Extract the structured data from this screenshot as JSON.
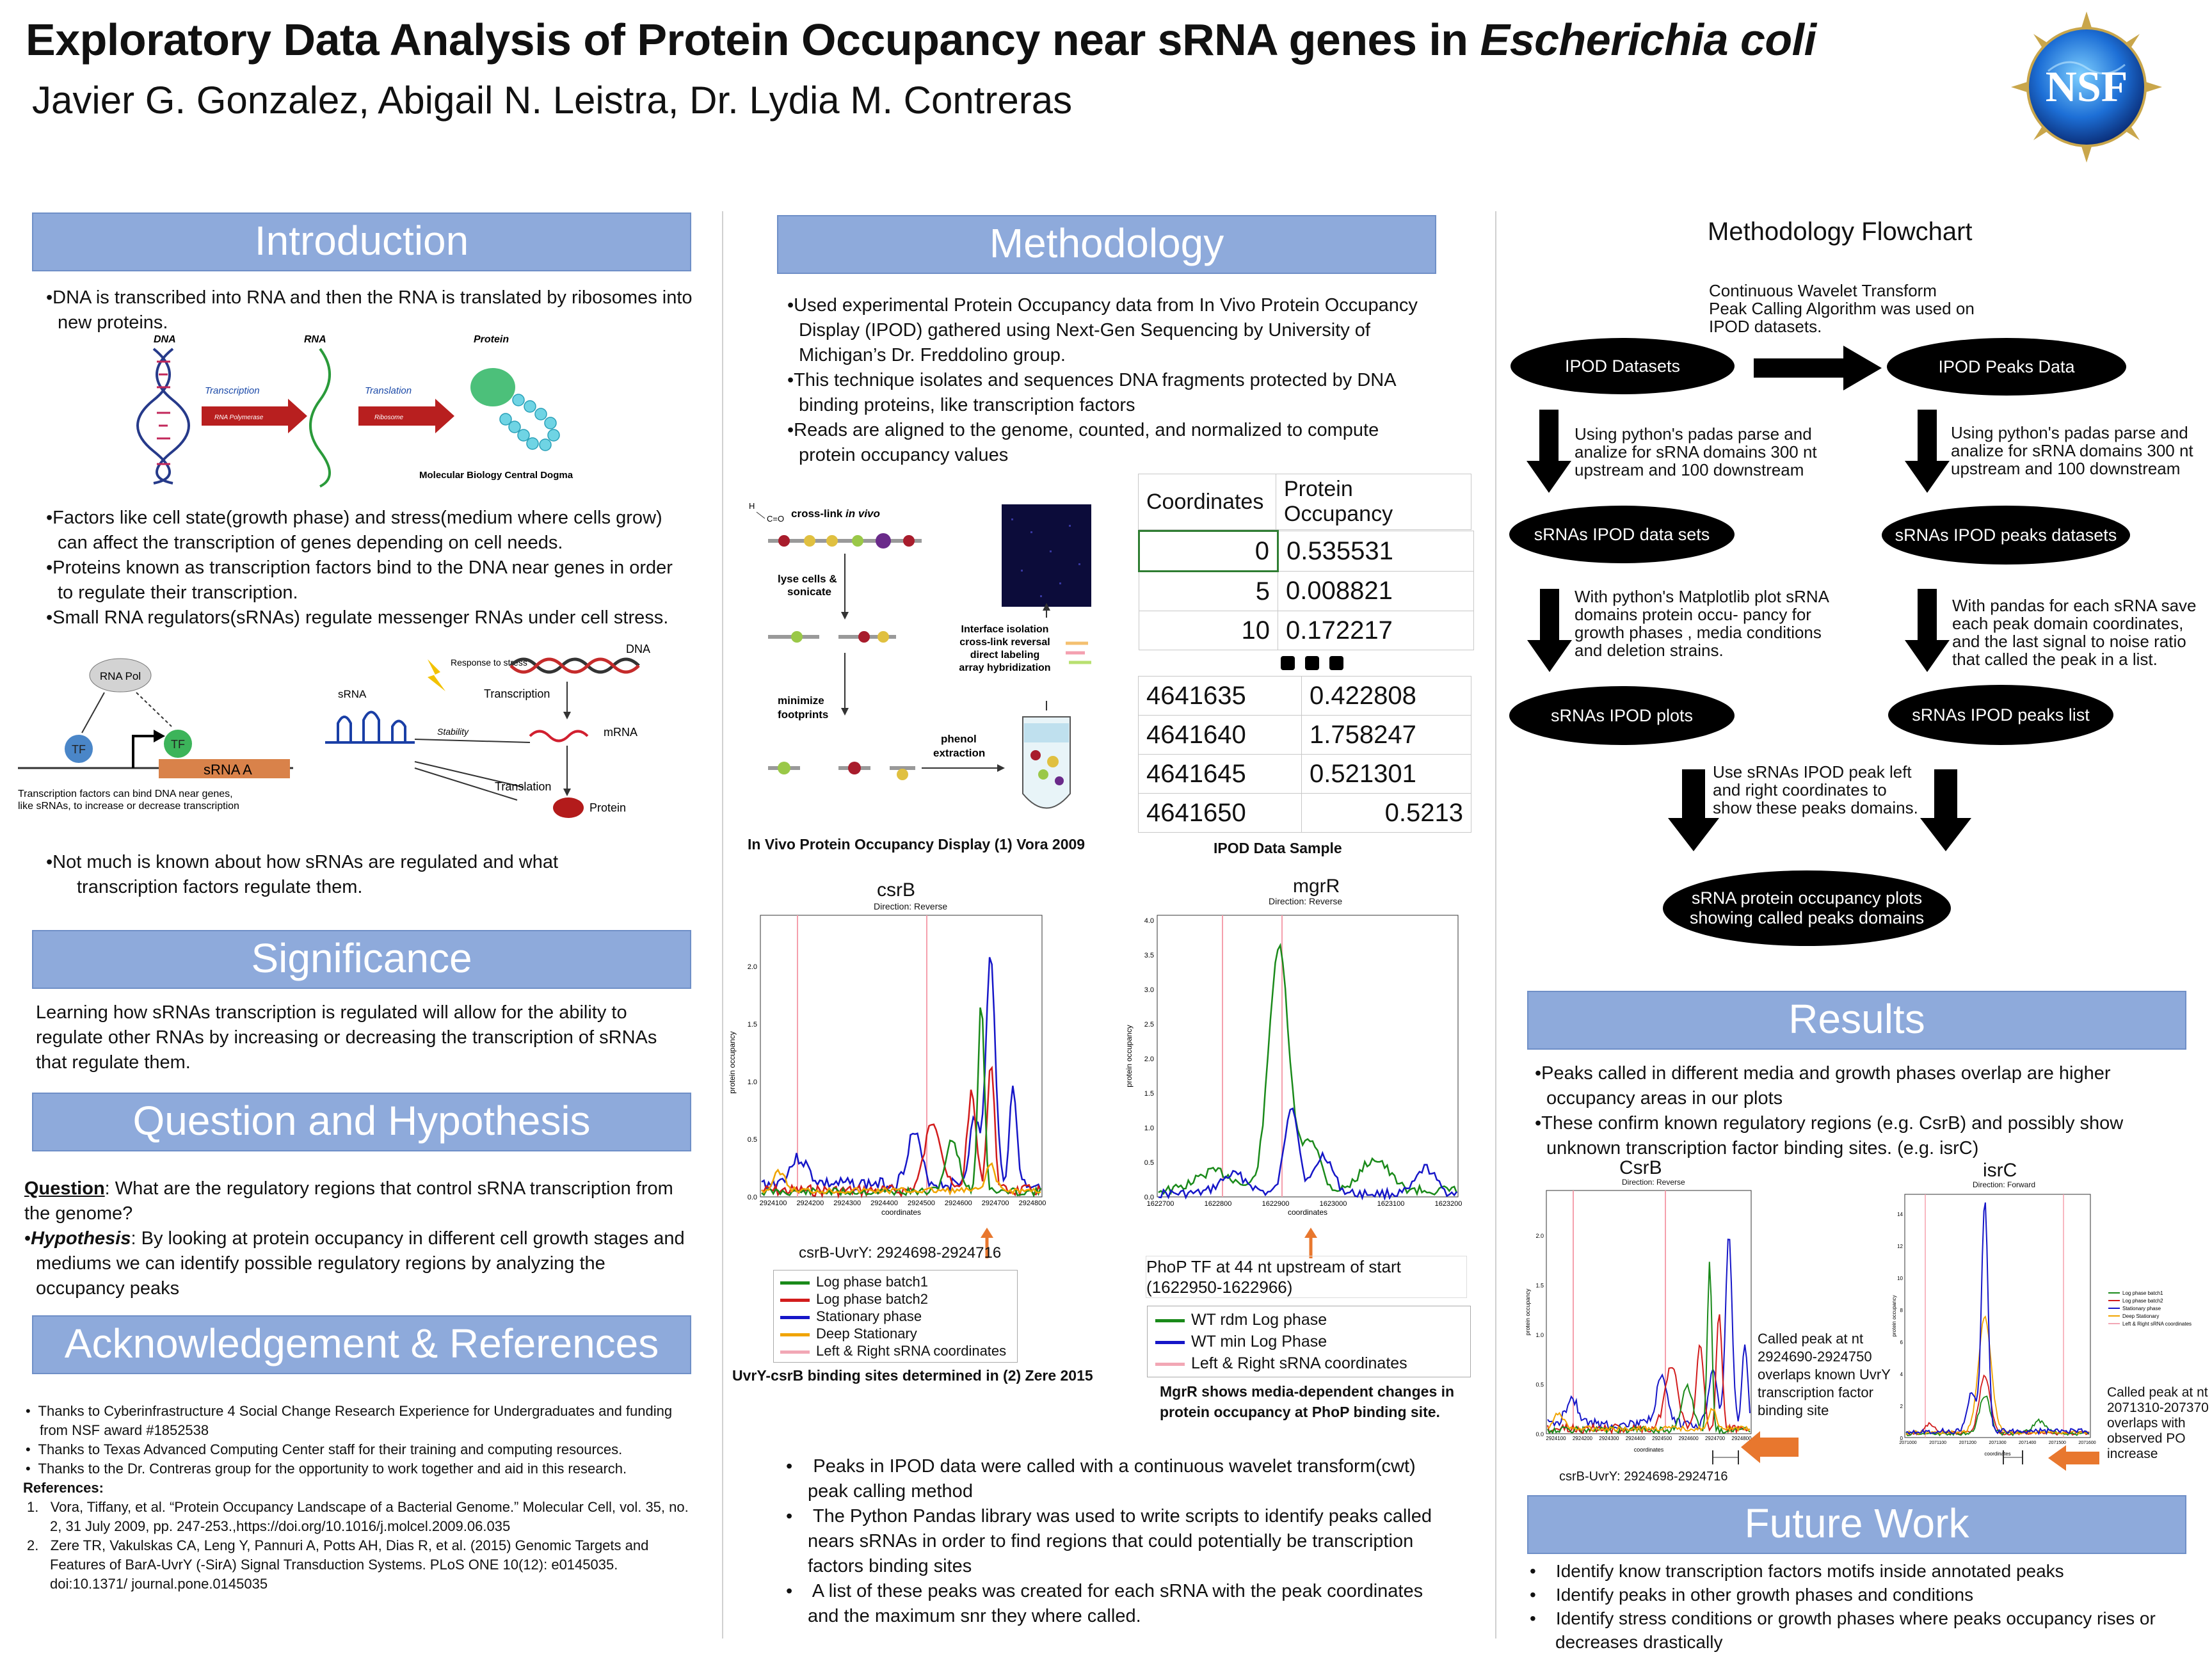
{
  "header": {
    "title_a": "Exploratory Data Analysis of Protein Occupancy near sRNA genes in ",
    "title_b": "Escherichia coli",
    "authors": "Javier G. Gonzalez, Abigail N. Leistra, Dr. Lydia M. Contreras",
    "logo_text": "NSF"
  },
  "intro": {
    "heading": "Introduction",
    "b1": "•DNA is transcribed into RNA and then the RNA is translated by ribosomes into new proteins.",
    "dogma": {
      "dna": "DNA",
      "rna": "RNA",
      "protein": "Protein",
      "transcription": "Transcription",
      "translation": "Translation",
      "rna_pol": "RNA Polymerase",
      "ribosome": "Ribosome",
      "caption": "Molecular Biology Central Dogma"
    },
    "b2": "•Factors like cell state(growth phase) and stress(medium where cells grow) can affect the transcription of genes depending on cell needs.",
    "b3": "•Proteins known as transcription factors bind to the DNA near genes in order to regulate their transcription.",
    "b4": "•Small RNA regulators(sRNAs) regulate messenger RNAs under cell stress.",
    "fig2": {
      "rnapol": "RNA Pol",
      "tf": "TF",
      "srna_a": "sRNA A",
      "caption": "Transcription factors can bind DNA near genes, like sRNAs, to increase or decrease transcription",
      "srna": "sRNA",
      "response": "Response to stress",
      "dna": "DNA",
      "transcription": "Transcription",
      "stability": "Stability",
      "mrna": "mRNA",
      "translation": "Translation",
      "protein": "Protein"
    },
    "b5": "•Not much is known about how sRNAs are regulated and what transcription factors regulate them."
  },
  "significance": {
    "heading": "Significance",
    "text": "Learning how sRNAs transcription is regulated will allow for the ability to regulate other RNAs by increasing or decreasing the transcription of sRNAs that regulate them."
  },
  "question": {
    "heading": "Question and Hypothesis",
    "q_label": "Question",
    "q_text": ": What are the regulatory regions that control sRNA transcription from the genome?",
    "h_bullet": "•",
    "h_label": "Hypothesis",
    "h_text": ": By looking at protein occupancy in different cell growth stages and mediums we can identify possible regulatory regions by analyzing the occupancy peaks"
  },
  "ack": {
    "heading": "Acknowledgement & References",
    "items": [
      "Thanks to Cyberinfrastructure 4 Social Change Research Experience for Undergraduates and funding from NSF award #1852538",
      "Thanks to  Texas Advanced Computing Center staff for their training and computing resources.",
      "Thanks to the Dr. Contreras group for the opportunity to work together and aid in this research."
    ],
    "refs_label": "References:",
    "refs": [
      "Vora, Tiffany, et al. “Protein Occupancy Landscape of a Bacterial Genome.” Molecular Cell, vol. 35, no. 2, 31 July 2009, pp. 247-253.,https://doi.org/10.1016/j.molcel.2009.06.035",
      "Zere TR, Vakulskas CA, Leng Y, Pannuri A, Potts AH, Dias R, et al. (2015) Genomic Targets and Features of BarA-UvrY (-SirA) Signal Transduction Systems. PLoS ONE 10(12): e0145035. doi:10.1371/ journal.pone.0145035"
    ]
  },
  "methodology": {
    "heading": "Methodology",
    "b1": "•Used experimental Protein Occupancy data from In Vivo Protein Occupancy Display (IPOD) gathered using Next-Gen Sequencing by University of Michigan’s Dr. Freddolino group.",
    "b2": "•This technique isolates and sequences DNA fragments protected by DNA binding proteins, like transcription factors",
    "b3": "•Reads are aligned to the genome, counted, and normalized to compute protein occupancy values",
    "ipod_fig": {
      "crosslink": "cross-link in vivo",
      "lyse": "lyse cells & sonicate",
      "minimize": "minimize footprints",
      "phenol": "phenol extraction",
      "interface": "Interface isolation cross-link reversal direct labeling array hybridization",
      "caption": "In Vivo Protein Occupancy Display (1) Vora 2009"
    },
    "table": {
      "headers": [
        "Coordinates",
        "Protein Occupancy"
      ],
      "rows_top": [
        [
          "0",
          "0.535531"
        ],
        [
          "5",
          "0.008821"
        ],
        [
          "10",
          "0.172217"
        ]
      ],
      "rows_bottom": [
        [
          "4641635",
          "0.422808"
        ],
        [
          "4641640",
          "1.758247"
        ],
        [
          "4641645",
          "0.521301"
        ],
        [
          "4641650",
          "0.5213"
        ]
      ],
      "caption": "IPOD Data Sample"
    },
    "bottom_bullets": [
      "Peaks in IPOD data were called with a continuous wavelet transform(cwt) peak calling method",
      "The Python Pandas library was used to write scripts to identify peaks called nears sRNAs in order to find regions that could potentially be transcription factors binding sites",
      "A list of these peaks was created for each sRNA with the peak coordinates and the maximum snr they where called."
    ]
  },
  "csrb_plot": {
    "title": "csrB",
    "subtitle": "Direction: Reverse",
    "ylabel": "protein occupancy",
    "xlabel": "coordinates",
    "xticks": [
      "2924100",
      "2924200",
      "2924300",
      "2924400",
      "2924500",
      "2924600",
      "2924700",
      "2924800"
    ],
    "yticks": [
      "0.0",
      "0.5",
      "1.0",
      "1.5",
      "2.0"
    ],
    "note": "csrB-UvrY: 2924698-2924716",
    "legend": [
      "Log phase batch1",
      "Log phase batch2",
      "Stationary phase",
      "Deep Stationary",
      "Left & Right sRNA coordinates"
    ],
    "caption": "UvrY-csrB binding sites determined in (2) Zere 2015"
  },
  "mgrr_plot": {
    "title": "mgrR",
    "subtitle": "Direction: Reverse",
    "ylabel": "protein occupancy",
    "xlabel": "coordinates",
    "xticks": [
      "1622700",
      "1622800",
      "1622900",
      "1623000",
      "1623100",
      "1623200"
    ],
    "yticks": [
      "0.0",
      "0.5",
      "1.0",
      "1.5",
      "2.0",
      "2.5",
      "3.0",
      "3.5",
      "4.0"
    ],
    "note1": "PhoP TF at 44 nt upstream of start",
    "note2": "(1622950-1622966)",
    "legend": [
      "WT rdm Log phase",
      "WT min Log Phase",
      "Left & Right sRNA coordinates"
    ],
    "caption": "MgrR shows media-dependent changes in protein occupancy at PhoP binding site."
  },
  "flowchart": {
    "title": "Methodology Flowchart",
    "top_text": "Continuous Wavelet Transform Peak Calling Algorithm was used on IPOD datasets.",
    "ipod_datasets": "IPOD Datasets",
    "ipod_peaks": "IPOD Peaks Data",
    "left_t1": "Using python's padas parse and analize for sRNA domains 300 nt upstream and 100 downstream",
    "right_t1": "Using python's padas parse and analize for sRNA domains 300 nt upstream and 100 downstream",
    "left_o2": "sRNAs IPOD data sets",
    "right_o2": "sRNAs IPOD peaks datasets",
    "left_t2": "With python's Matplotlib plot sRNA domains protein occu- pancy for growth phases , media conditions and deletion strains.",
    "right_t2": "With pandas for each sRNA save each peak domain coordinates, and the last signal to noise ratio that called the peak in a list.",
    "left_o3": "sRNAs IPOD plots",
    "right_o3": "sRNAs IPOD peaks list",
    "mid_text": "Use sRNAs IPOD peak left and right coordinates to show these peaks domains.",
    "final": "sRNA protein occupancy plots showing called peaks domains"
  },
  "results": {
    "heading": "Results",
    "b1": "•Peaks called in different media and growth phases overlap are higher occupancy areas in our plots",
    "b2": "•These confirm known regulatory regions (e.g. CsrB) and possibly show unknown transcription factor binding sites. (e.g. isrC)",
    "csrb": {
      "title": "CsrB",
      "subtitle": "Direction: Reverse",
      "note": "csrB-UvrY: 2924698-2924716",
      "ylabel": "protein occupancy",
      "xlabel": "coordinates",
      "xticks": [
        "2924100",
        "2924200",
        "2924300",
        "2924400",
        "2924500",
        "2924600",
        "2924700",
        "2924800"
      ],
      "yticks": [
        "0.0",
        "0.5",
        "1.0",
        "1.5",
        "2.0"
      ],
      "callout": "Called peak at nt 2924690-2924750 overlaps known UvrY transcription factor binding site"
    },
    "isrc": {
      "title": "isrC",
      "subtitle": "Direction: Forward",
      "ylabel": "protein occupancy",
      "xlabel": "coordinates",
      "xticks": [
        "2071000",
        "2071100",
        "2071200",
        "2071300",
        "2071400",
        "2071500",
        "2071600"
      ],
      "yticks": [
        "0",
        "2",
        "4",
        "6",
        "8",
        "10",
        "12",
        "14"
      ],
      "legend": [
        "Log phase batch1",
        "Log phase batch2",
        "Stationary phase",
        "Deep Stationary",
        "Left & Right sRNA coordinates"
      ],
      "callout": "Called peak at nt 2071310-207370 overlaps with observed PO increase"
    }
  },
  "future": {
    "heading": "Future Work",
    "items": [
      "Identify know transcription factors motifs inside annotated peaks",
      "Identify peaks in other growth phases and conditions",
      "Identify stress conditions or growth phases where peaks occupancy rises or decreases drastically"
    ]
  },
  "colors": {
    "header_bg": "#8eaadb",
    "green": "#1a8a1a",
    "red": "#d21c1c",
    "blue": "#1616c8",
    "orange": "#f0a400",
    "pink": "#f2a7b5",
    "arrow_orange": "#e8772e"
  }
}
